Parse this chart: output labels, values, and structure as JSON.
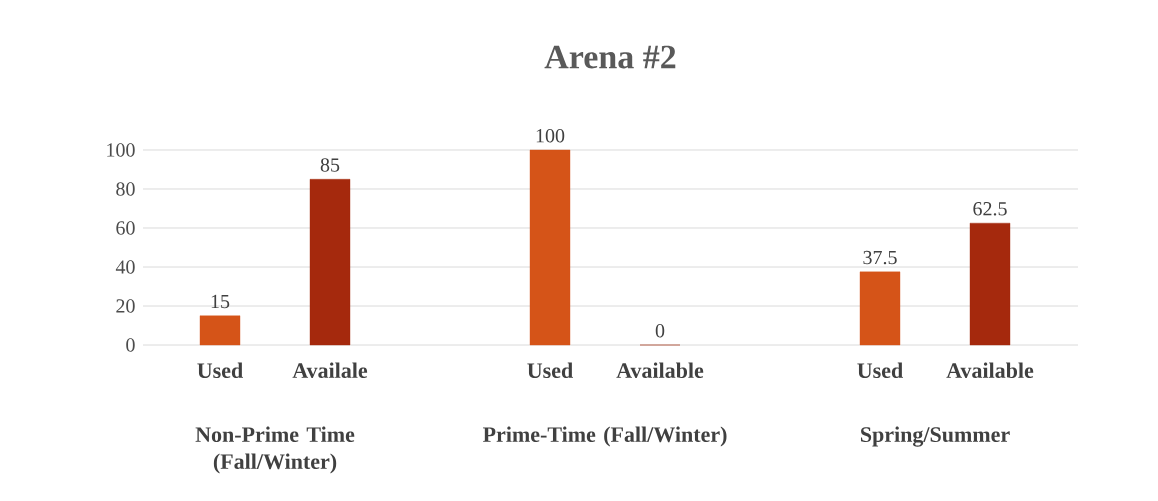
{
  "chart_data": {
    "type": "bar",
    "title": "Arena #2",
    "categories": [
      "Used",
      "Availale",
      null,
      "Used",
      "Available",
      null,
      "Used",
      "Available"
    ],
    "values": [
      15,
      85,
      null,
      100,
      0,
      null,
      37.5,
      62.5
    ],
    "colors": [
      "#d55418",
      "#a5290d",
      "#ffffff",
      "#d55418",
      "#a5290d",
      "#ffffff",
      "#d55418",
      "#a5290d"
    ],
    "ylim": [
      0,
      100
    ],
    "yticks": [
      0,
      20,
      40,
      60,
      80,
      100
    ],
    "grid": "y",
    "data_labels": true,
    "annotations": [
      "Non-Prime Time (Fall/Winter)",
      "Prime-Time (Fall/Winter)",
      "Spring/Summer"
    ]
  }
}
